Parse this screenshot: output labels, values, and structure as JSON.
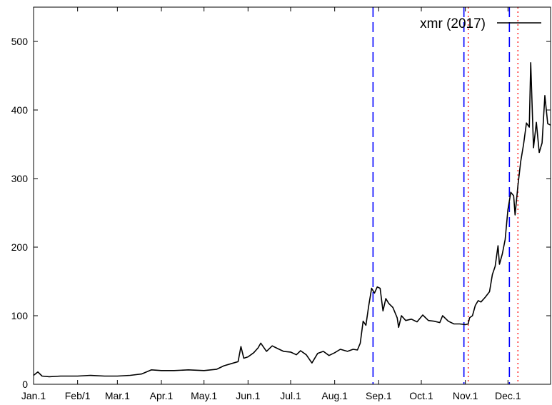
{
  "chart_data": {
    "type": "line",
    "title": "",
    "xlabel": "",
    "ylabel": "",
    "xlim": [
      "2017-01-01",
      "2017-12-31"
    ],
    "ylim": [
      0,
      550
    ],
    "yticks": [
      0,
      100,
      200,
      300,
      400,
      500
    ],
    "xticks": [
      {
        "date": "2017-01-01",
        "label": "Jan.1"
      },
      {
        "date": "2017-02-01",
        "label": "Feb/1"
      },
      {
        "date": "2017-03-01",
        "label": "Mar.1"
      },
      {
        "date": "2017-04-01",
        "label": "Apr.1"
      },
      {
        "date": "2017-05-01",
        "label": "May.1"
      },
      {
        "date": "2017-06-01",
        "label": "Jun.1"
      },
      {
        "date": "2017-07-01",
        "label": "Jul.1"
      },
      {
        "date": "2017-08-01",
        "label": "Aug.1"
      },
      {
        "date": "2017-09-01",
        "label": "Sep.1"
      },
      {
        "date": "2017-10-01",
        "label": "Oct.1"
      },
      {
        "date": "2017-11-01",
        "label": "Nov.1"
      },
      {
        "date": "2017-12-01",
        "label": "Dec.1"
      }
    ],
    "grid": false,
    "legend": {
      "position": "top-right"
    },
    "series": [
      {
        "name": "xmr (2017)",
        "color": "#000000",
        "points": [
          [
            "2017-01-01",
            13
          ],
          [
            "2017-01-04",
            18
          ],
          [
            "2017-01-07",
            12
          ],
          [
            "2017-01-12",
            11
          ],
          [
            "2017-01-20",
            12
          ],
          [
            "2017-02-01",
            12
          ],
          [
            "2017-02-10",
            13
          ],
          [
            "2017-02-20",
            12
          ],
          [
            "2017-03-01",
            12
          ],
          [
            "2017-03-10",
            13
          ],
          [
            "2017-03-18",
            15
          ],
          [
            "2017-03-25",
            21
          ],
          [
            "2017-04-01",
            20
          ],
          [
            "2017-04-10",
            20
          ],
          [
            "2017-04-20",
            21
          ],
          [
            "2017-05-01",
            20
          ],
          [
            "2017-05-10",
            22
          ],
          [
            "2017-05-15",
            27
          ],
          [
            "2017-05-20",
            30
          ],
          [
            "2017-05-25",
            33
          ],
          [
            "2017-05-27",
            55
          ],
          [
            "2017-05-29",
            38
          ],
          [
            "2017-06-01",
            40
          ],
          [
            "2017-06-05",
            46
          ],
          [
            "2017-06-08",
            53
          ],
          [
            "2017-06-10",
            60
          ],
          [
            "2017-06-14",
            48
          ],
          [
            "2017-06-18",
            56
          ],
          [
            "2017-06-22",
            52
          ],
          [
            "2017-06-26",
            48
          ],
          [
            "2017-07-01",
            47
          ],
          [
            "2017-07-05",
            43
          ],
          [
            "2017-07-08",
            49
          ],
          [
            "2017-07-12",
            43
          ],
          [
            "2017-07-16",
            31
          ],
          [
            "2017-07-20",
            45
          ],
          [
            "2017-07-24",
            48
          ],
          [
            "2017-07-28",
            42
          ],
          [
            "2017-08-01",
            46
          ],
          [
            "2017-08-05",
            51
          ],
          [
            "2017-08-10",
            48
          ],
          [
            "2017-08-14",
            51
          ],
          [
            "2017-08-17",
            50
          ],
          [
            "2017-08-19",
            60
          ],
          [
            "2017-08-21",
            92
          ],
          [
            "2017-08-23",
            86
          ],
          [
            "2017-08-25",
            115
          ],
          [
            "2017-08-27",
            140
          ],
          [
            "2017-08-29",
            133
          ],
          [
            "2017-08-31",
            142
          ],
          [
            "2017-09-02",
            140
          ],
          [
            "2017-09-04",
            107
          ],
          [
            "2017-09-06",
            125
          ],
          [
            "2017-09-08",
            118
          ],
          [
            "2017-09-11",
            112
          ],
          [
            "2017-09-14",
            97
          ],
          [
            "2017-09-15",
            83
          ],
          [
            "2017-09-17",
            100
          ],
          [
            "2017-09-20",
            93
          ],
          [
            "2017-09-24",
            95
          ],
          [
            "2017-09-28",
            91
          ],
          [
            "2017-10-02",
            101
          ],
          [
            "2017-10-06",
            93
          ],
          [
            "2017-10-10",
            92
          ],
          [
            "2017-10-14",
            90
          ],
          [
            "2017-10-16",
            100
          ],
          [
            "2017-10-20",
            92
          ],
          [
            "2017-10-24",
            88
          ],
          [
            "2017-10-28",
            88
          ],
          [
            "2017-11-01",
            87
          ],
          [
            "2017-11-03",
            88
          ],
          [
            "2017-11-04",
            97
          ],
          [
            "2017-11-06",
            100
          ],
          [
            "2017-11-08",
            115
          ],
          [
            "2017-11-10",
            122
          ],
          [
            "2017-11-12",
            120
          ],
          [
            "2017-11-15",
            127
          ],
          [
            "2017-11-18",
            135
          ],
          [
            "2017-11-20",
            160
          ],
          [
            "2017-11-22",
            172
          ],
          [
            "2017-11-24",
            202
          ],
          [
            "2017-11-25",
            175
          ],
          [
            "2017-11-27",
            190
          ],
          [
            "2017-11-29",
            211
          ],
          [
            "2017-12-01",
            255
          ],
          [
            "2017-12-03",
            280
          ],
          [
            "2017-12-05",
            275
          ],
          [
            "2017-12-06",
            247
          ],
          [
            "2017-12-08",
            290
          ],
          [
            "2017-12-10",
            325
          ],
          [
            "2017-12-12",
            350
          ],
          [
            "2017-12-14",
            381
          ],
          [
            "2017-12-16",
            375
          ],
          [
            "2017-12-17",
            469
          ],
          [
            "2017-12-19",
            345
          ],
          [
            "2017-12-21",
            382
          ],
          [
            "2017-12-23",
            338
          ],
          [
            "2017-12-25",
            352
          ],
          [
            "2017-12-27",
            421
          ],
          [
            "2017-12-29",
            380
          ],
          [
            "2017-12-31",
            378
          ]
        ]
      }
    ],
    "vlines": [
      {
        "date": "2017-08-28",
        "style": "dashed",
        "color": "#0000ff"
      },
      {
        "date": "2017-10-31",
        "style": "dashed",
        "color": "#0000ff"
      },
      {
        "date": "2017-11-03",
        "style": "dotted",
        "color": "#ff0000"
      },
      {
        "date": "2017-12-02",
        "style": "dashed",
        "color": "#0000ff"
      },
      {
        "date": "2017-12-08",
        "style": "dotted",
        "color": "#ff0000"
      }
    ]
  }
}
